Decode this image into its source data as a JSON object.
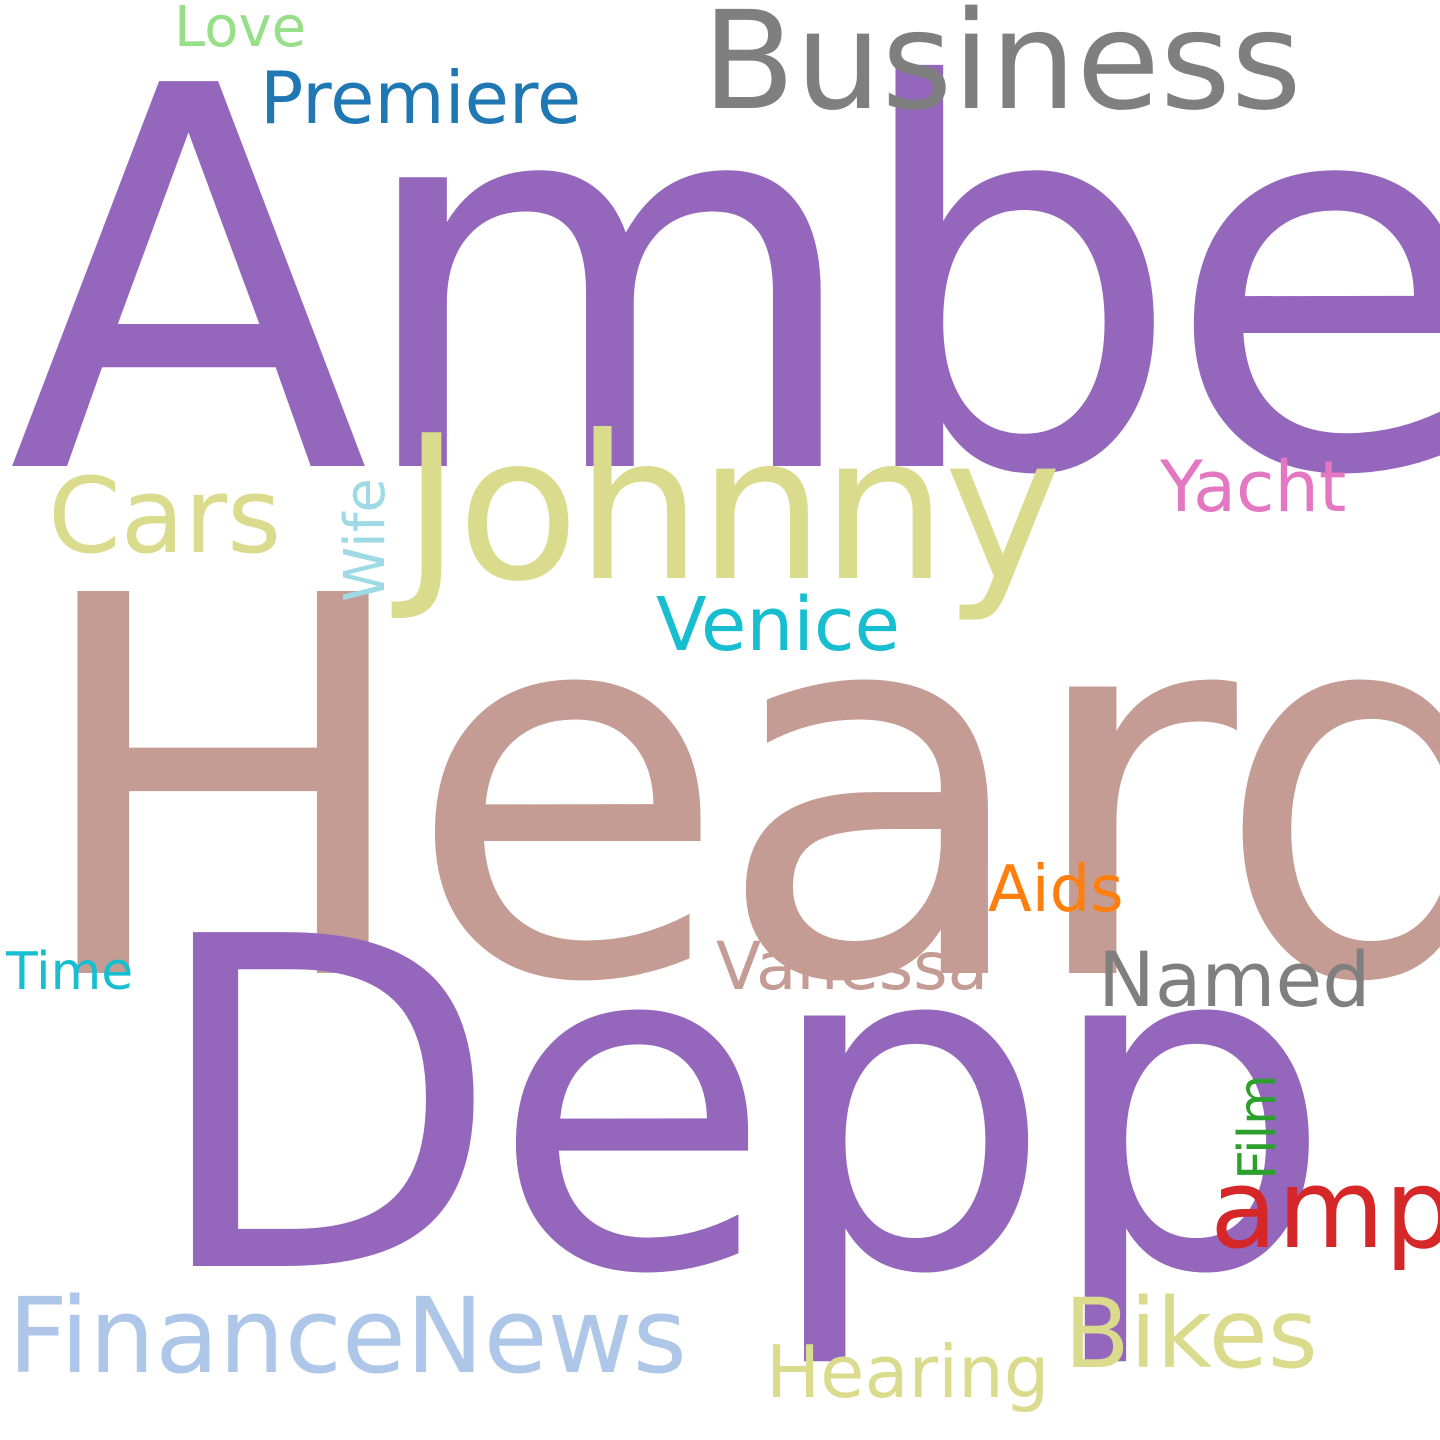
{
  "colors": {
    "background": "#ffffff",
    "purple": "#9467bd",
    "rose_brown": "#c49c94",
    "olive_yellow": "#dbdb8d",
    "gray": "#7f7f7f",
    "blue": "#1f77b4",
    "light_green": "#98df8a",
    "light_blue": "#aec7e8",
    "pale_cyan": "#9edae5",
    "pink": "#e377c2",
    "cyan": "#17becf",
    "orange": "#ff7f0e",
    "green": "#2ca02c",
    "red": "#d62728"
  },
  "words": {
    "amber": {
      "text": "Amber",
      "color": "#9467bd"
    },
    "heard": {
      "text": "Heard",
      "color": "#c49c94"
    },
    "depp": {
      "text": "Depp",
      "color": "#9467bd"
    },
    "johnny": {
      "text": "Johnny",
      "color": "#dbdb8d"
    },
    "business": {
      "text": "Business",
      "color": "#7f7f7f"
    },
    "premiere": {
      "text": "Premiere",
      "color": "#1f77b4"
    },
    "love": {
      "text": "Love",
      "color": "#98df8a"
    },
    "cars": {
      "text": "Cars",
      "color": "#dbdb8d"
    },
    "wife": {
      "text": "Wife",
      "color": "#9edae5"
    },
    "yacht": {
      "text": "Yacht",
      "color": "#e377c2"
    },
    "venice": {
      "text": "Venice",
      "color": "#17becf"
    },
    "aids": {
      "text": "Aids",
      "color": "#ff7f0e"
    },
    "time": {
      "text": "Time",
      "color": "#17becf"
    },
    "vanessa": {
      "text": "Vanessa",
      "color": "#c49c94"
    },
    "named": {
      "text": "Named",
      "color": "#7f7f7f"
    },
    "film": {
      "text": "Film",
      "color": "#2ca02c"
    },
    "amp": {
      "text": "amp",
      "color": "#d62728"
    },
    "financenews": {
      "text": "FinanceNews",
      "color": "#aec7e8"
    },
    "bikes": {
      "text": "Bikes",
      "color": "#dbdb8d"
    },
    "hearing": {
      "text": "Hearing",
      "color": "#dbdb8d"
    }
  }
}
